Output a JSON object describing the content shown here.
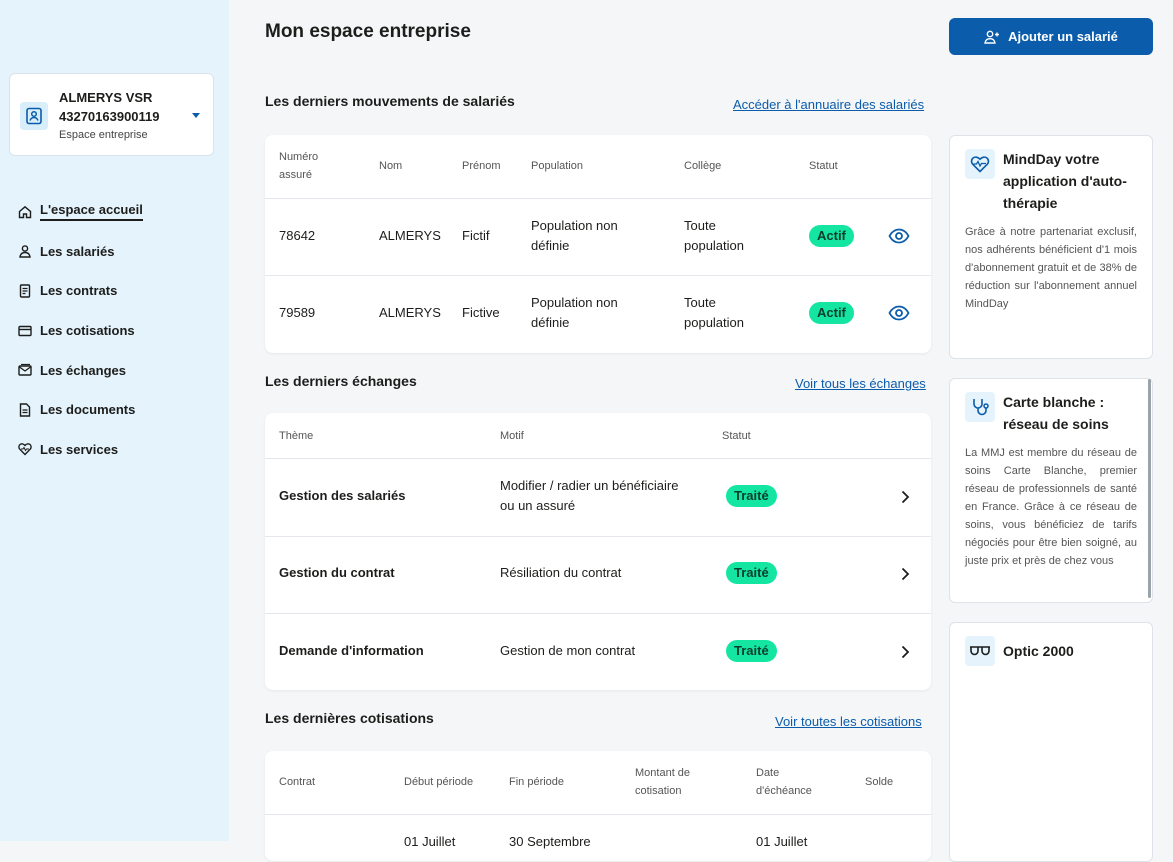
{
  "sidebar": {
    "account": {
      "name": "ALMERYS VSR",
      "number": "43270163900119",
      "subtitle": "Espace entreprise"
    },
    "items": [
      {
        "label": "L'espace accueil",
        "icon": "home-icon"
      },
      {
        "label": "Les salariés",
        "icon": "user-icon"
      },
      {
        "label": "Les contrats",
        "icon": "contract-icon"
      },
      {
        "label": "Les cotisations",
        "icon": "card-icon"
      },
      {
        "label": "Les échanges",
        "icon": "mail-icon"
      },
      {
        "label": "Les documents",
        "icon": "document-icon"
      },
      {
        "label": "Les services",
        "icon": "heart-icon"
      }
    ]
  },
  "header": {
    "title": "Mon espace entreprise",
    "add_button": "Ajouter un salarié"
  },
  "employees": {
    "title": "Les derniers mouvements de salariés",
    "link": "Accéder à l'annuaire des salariés",
    "columns": {
      "numero_1": "Numéro",
      "numero_2": "assuré",
      "nom": "Nom",
      "prenom": "Prénom",
      "population": "Population",
      "college": "Collège",
      "statut": "Statut"
    },
    "rows": [
      {
        "numero": "78642",
        "nom": "ALMERYS",
        "prenom": "Fictif",
        "population_1": "Population non",
        "population_2": "définie",
        "college_1": "Toute",
        "college_2": "population",
        "statut": "Actif"
      },
      {
        "numero": "79589",
        "nom": "ALMERYS",
        "prenom": "Fictive",
        "population_1": "Population non",
        "population_2": "définie",
        "college_1": "Toute",
        "college_2": "population",
        "statut": "Actif"
      }
    ]
  },
  "exchanges": {
    "title": "Les derniers échanges",
    "link": "Voir tous les échanges",
    "columns": {
      "theme": "Thème",
      "motif": "Motif",
      "statut": "Statut"
    },
    "rows": [
      {
        "theme": "Gestion des salariés",
        "motif_1": "Modifier / radier un bénéficiaire",
        "motif_2": "ou un assuré",
        "statut": "Traité"
      },
      {
        "theme": "Gestion du contrat",
        "motif_1": "Résiliation du contrat",
        "motif_2": "",
        "statut": "Traité"
      },
      {
        "theme": "Demande d'information",
        "motif_1": "Gestion de mon contrat",
        "motif_2": "",
        "statut": "Traité"
      }
    ]
  },
  "contributions": {
    "title": "Les dernières cotisations",
    "link": "Voir toutes les cotisations",
    "columns": {
      "contrat": "Contrat",
      "debut": "Début période",
      "fin": "Fin période",
      "montant_1": "Montant de",
      "montant_2": "cotisation",
      "echeance_1": "Date",
      "echeance_2": "d'échéance",
      "solde": "Solde"
    },
    "partial_row": {
      "debut": "01 Juillet",
      "fin": "30 Septembre",
      "echeance": "01 Juillet"
    }
  },
  "services": [
    {
      "title": "MindDay votre application d'auto-thérapie",
      "icon": "heartbeat-icon",
      "text": "Grâce à notre partenariat exclusif, nos adhérents bénéficient d'1 mois d'abonnement gratuit et de 38% de réduction sur l'abonnement annuel MindDay"
    },
    {
      "title": "Carte blanche : réseau de soins",
      "icon": "stethoscope-icon",
      "text": "La MMJ est membre du réseau de soins Carte Blanche, premier réseau de professionnels de santé en France. Grâce à ce réseau de soins, vous bénéficiez de tarifs négociés pour être bien soigné, au juste prix et près de chez vous"
    },
    {
      "title": "Optic 2000",
      "icon": "glasses-icon",
      "text": ""
    }
  ],
  "colors": {
    "primary": "#0b5cab",
    "status_green": "#14e6a2",
    "sidebar_bg": "#e4f3fc"
  }
}
